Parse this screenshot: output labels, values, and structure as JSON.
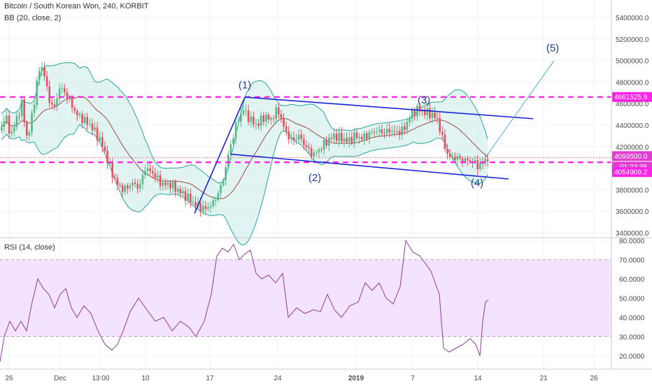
{
  "header": {
    "symbol_line": "Bitcoin / South Korean Won, 240, KORBIT",
    "bb_line": "BB (20, close, 2)",
    "rsi_line": "RSI (14, close)"
  },
  "colors": {
    "bull": "#53b987",
    "bear": "#eb4d5c",
    "bb_band": "#26a69a",
    "bb_fill": "#bfe6e0",
    "bb_basis": "#9c4a4a",
    "channel": "#1723d6",
    "level": "#ff22e6",
    "rsi_line": "#8e3c9d",
    "rsi_band": "#f3e3ff",
    "wave_label": "#223a8a",
    "projection": "#3fa7d6",
    "price_badge": "#ff22e6",
    "timer_badge": "#e43bd1"
  },
  "axis": {
    "price_ticks": [
      "5400000.0",
      "5200000.0",
      "5000000.0",
      "4800000.0",
      "4600000.0",
      "4400000.0",
      "4200000.0",
      "4000000.0",
      "3800000.0",
      "3600000.0",
      "3400000.0"
    ],
    "rsi_ticks": [
      "80.0000",
      "70.0000",
      "60.0000",
      "50.0000",
      "40.0000",
      "30.0000",
      "20.0000"
    ],
    "time_labels": [
      "26",
      "Dec",
      "13:00",
      "10",
      "17",
      "24",
      "2019",
      "7",
      "14",
      "21",
      "26"
    ]
  },
  "badges": {
    "level_high": "4661525.9",
    "current_price": "4099500.0",
    "timer": "01:23:38",
    "level_low": "4054909.2"
  },
  "wave_labels": [
    "(1)",
    "(2)",
    "(3)",
    "(4)",
    "(5)"
  ],
  "chart_data": [
    {
      "type": "candlestick",
      "title": "Bitcoin / South Korean Won, 240, KORBIT",
      "indicator": "BB (20, close, 2)",
      "ylim": [
        3350000,
        5500000
      ],
      "horizontal_levels": [
        4661525.9,
        4054909.2
      ],
      "last_price": 4099500.0,
      "close_path": [
        [
          0,
          4350000
        ],
        [
          6,
          4500000
        ],
        [
          14,
          4300000
        ],
        [
          22,
          4450000
        ],
        [
          30,
          4600000
        ],
        [
          38,
          4250000
        ],
        [
          46,
          4550000
        ],
        [
          54,
          4900000
        ],
        [
          60,
          4950000
        ],
        [
          68,
          4650000
        ],
        [
          76,
          4550000
        ],
        [
          84,
          4750000
        ],
        [
          92,
          4700000
        ],
        [
          100,
          4600000
        ],
        [
          108,
          4500000
        ],
        [
          118,
          4450000
        ],
        [
          128,
          4400000
        ],
        [
          138,
          4300000
        ],
        [
          146,
          4200000
        ],
        [
          156,
          4000000
        ],
        [
          166,
          3850000
        ],
        [
          176,
          3800000
        ],
        [
          188,
          3860000
        ],
        [
          198,
          3820000
        ],
        [
          206,
          4000000
        ],
        [
          218,
          3950000
        ],
        [
          230,
          3850000
        ],
        [
          242,
          3850000
        ],
        [
          256,
          3780000
        ],
        [
          268,
          3720000
        ],
        [
          280,
          3650000
        ],
        [
          292,
          3620000
        ],
        [
          304,
          3680000
        ],
        [
          316,
          3850000
        ],
        [
          326,
          4150000
        ],
        [
          336,
          4400000
        ],
        [
          346,
          4550000
        ],
        [
          356,
          4450000
        ],
        [
          366,
          4400000
        ],
        [
          376,
          4480000
        ],
        [
          386,
          4450000
        ],
        [
          396,
          4550000
        ],
        [
          406,
          4350000
        ],
        [
          416,
          4250000
        ],
        [
          426,
          4300000
        ],
        [
          436,
          4200000
        ],
        [
          446,
          4120000
        ],
        [
          456,
          4180000
        ],
        [
          466,
          4250000
        ],
        [
          476,
          4300000
        ],
        [
          486,
          4280000
        ],
        [
          496,
          4250000
        ],
        [
          506,
          4300000
        ],
        [
          516,
          4280000
        ],
        [
          526,
          4320000
        ],
        [
          536,
          4350000
        ],
        [
          546,
          4330000
        ],
        [
          556,
          4350000
        ],
        [
          566,
          4330000
        ],
        [
          576,
          4360000
        ],
        [
          586,
          4500000
        ],
        [
          596,
          4550000
        ],
        [
          606,
          4520000
        ],
        [
          616,
          4500000
        ],
        [
          624,
          4450000
        ],
        [
          632,
          4250000
        ],
        [
          640,
          4100000
        ],
        [
          650,
          4100000
        ],
        [
          660,
          4080000
        ],
        [
          668,
          4070000
        ],
        [
          676,
          4060000
        ],
        [
          682,
          4020000
        ],
        [
          688,
          4040000
        ],
        [
          694,
          4090000
        ],
        [
          698,
          4100000
        ]
      ],
      "wave_points": [
        {
          "label": "(1)",
          "x": 350,
          "y": 4650000
        },
        {
          "label": "(2)",
          "x": 450,
          "y": 4050000
        },
        {
          "label": "(3)",
          "x": 606,
          "y": 4550000
        },
        {
          "label": "(4)",
          "x": 682,
          "y": 4000000
        },
        {
          "label": "(5)",
          "x": 790,
          "y": 5020000
        }
      ]
    },
    {
      "type": "line",
      "title": "RSI (14, close)",
      "ylim": [
        15,
        82
      ],
      "band": [
        30,
        70
      ],
      "values_path": [
        [
          0,
          17
        ],
        [
          6,
          30
        ],
        [
          14,
          38
        ],
        [
          22,
          33
        ],
        [
          30,
          38
        ],
        [
          38,
          33
        ],
        [
          46,
          48
        ],
        [
          54,
          60
        ],
        [
          62,
          55
        ],
        [
          70,
          52
        ],
        [
          78,
          45
        ],
        [
          86,
          52
        ],
        [
          94,
          55
        ],
        [
          102,
          45
        ],
        [
          110,
          40
        ],
        [
          120,
          46
        ],
        [
          130,
          42
        ],
        [
          140,
          33
        ],
        [
          150,
          26
        ],
        [
          160,
          23
        ],
        [
          168,
          26
        ],
        [
          176,
          33
        ],
        [
          186,
          43
        ],
        [
          198,
          50
        ],
        [
          210,
          44
        ],
        [
          222,
          38
        ],
        [
          234,
          40
        ],
        [
          246,
          33
        ],
        [
          258,
          38
        ],
        [
          270,
          35
        ],
        [
          280,
          30
        ],
        [
          292,
          38
        ],
        [
          302,
          52
        ],
        [
          310,
          72
        ],
        [
          318,
          76
        ],
        [
          326,
          74
        ],
        [
          334,
          78
        ],
        [
          342,
          70
        ],
        [
          350,
          73
        ],
        [
          358,
          75
        ],
        [
          366,
          63
        ],
        [
          374,
          60
        ],
        [
          384,
          62
        ],
        [
          394,
          58
        ],
        [
          404,
          63
        ],
        [
          412,
          40
        ],
        [
          424,
          45
        ],
        [
          436,
          42
        ],
        [
          448,
          44
        ],
        [
          458,
          43
        ],
        [
          468,
          52
        ],
        [
          478,
          44
        ],
        [
          488,
          40
        ],
        [
          500,
          46
        ],
        [
          512,
          48
        ],
        [
          522,
          58
        ],
        [
          532,
          54
        ],
        [
          542,
          58
        ],
        [
          552,
          50
        ],
        [
          562,
          47
        ],
        [
          572,
          56
        ],
        [
          580,
          80
        ],
        [
          590,
          74
        ],
        [
          600,
          72
        ],
        [
          608,
          68
        ],
        [
          616,
          64
        ],
        [
          622,
          58
        ],
        [
          628,
          52
        ],
        [
          634,
          24
        ],
        [
          642,
          22
        ],
        [
          652,
          24
        ],
        [
          662,
          26
        ],
        [
          672,
          29
        ],
        [
          680,
          26
        ],
        [
          686,
          20
        ],
        [
          690,
          38
        ],
        [
          694,
          48
        ],
        [
          698,
          49
        ]
      ]
    }
  ]
}
